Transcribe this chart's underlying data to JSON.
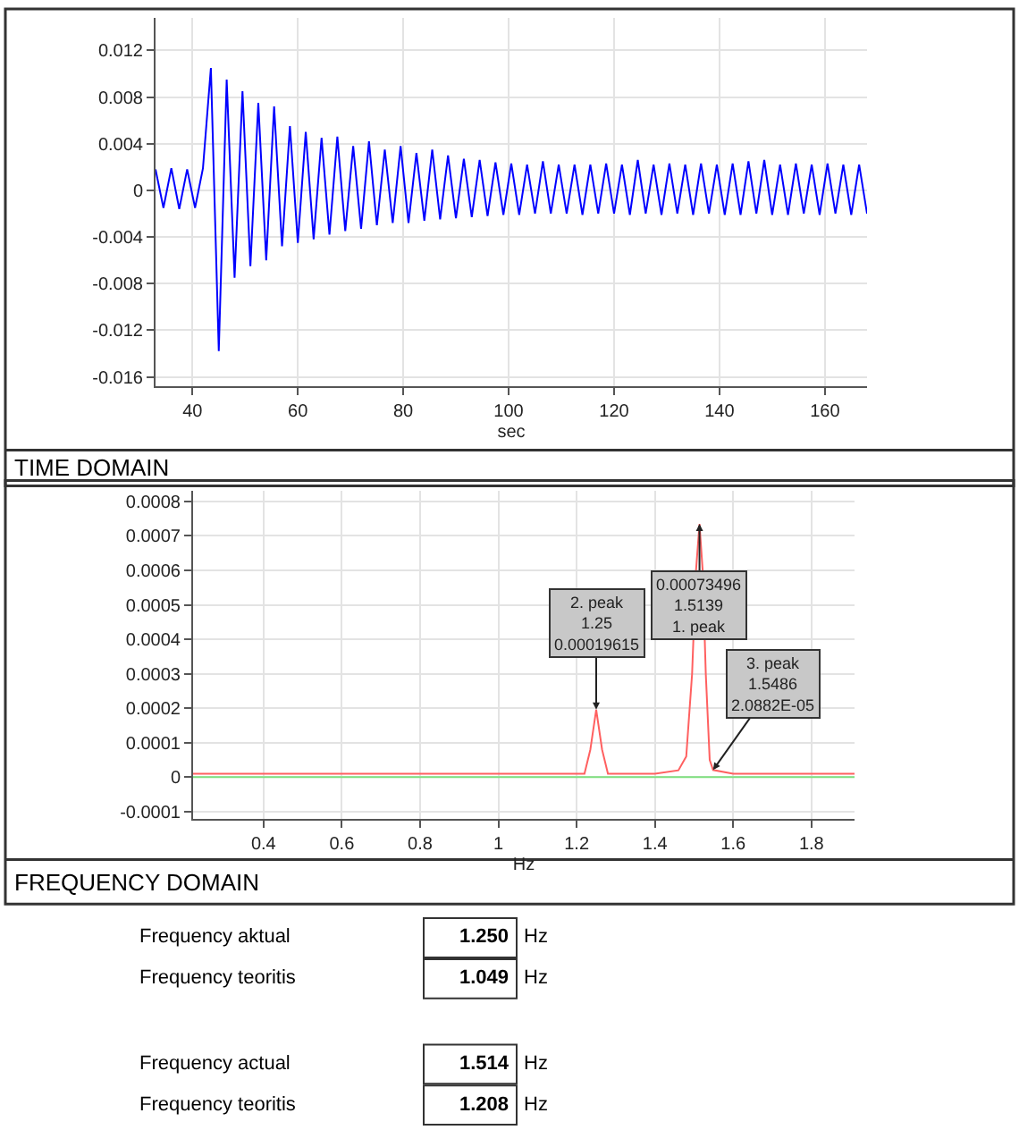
{
  "chart_data": [
    {
      "type": "line",
      "title": "TIME DOMAIN",
      "xlabel": "sec",
      "color": "#0000ff",
      "grid": true,
      "xlim": [
        33,
        168
      ],
      "ylim": [
        -0.0168,
        0.0148
      ],
      "xticks": [
        40,
        60,
        80,
        100,
        120,
        140,
        160
      ],
      "yticks": [
        -0.016,
        -0.012,
        -0.008,
        -0.004,
        0,
        0.004,
        0.008,
        0.012
      ],
      "x": [
        33,
        34.5,
        36,
        37.5,
        39,
        40.5,
        42,
        43.5,
        45,
        46.5,
        48,
        49.5,
        51,
        52.5,
        54,
        55.5,
        57,
        58.5,
        60,
        61.5,
        63,
        64.5,
        66,
        67.5,
        69,
        70.5,
        72,
        73.5,
        75,
        76.5,
        78,
        79.5,
        81,
        82.5,
        84,
        85.5,
        87,
        88.5,
        90,
        91.5,
        93,
        94.5,
        96,
        97.5,
        99,
        100.5,
        102,
        103.5,
        105,
        106.5,
        108,
        109.5,
        111,
        112.5,
        114,
        115.5,
        117,
        118.5,
        120,
        121.5,
        123,
        124.5,
        126,
        127.5,
        129,
        130.5,
        132,
        133.5,
        135,
        136.5,
        138,
        139.5,
        141,
        142.5,
        144,
        145.5,
        147,
        148.5,
        150,
        151.5,
        153,
        154.5,
        156,
        157.5,
        159,
        160.5,
        162,
        163.5,
        165,
        166.5,
        168
      ],
      "values": [
        0.0018,
        -0.0015,
        0.0019,
        -0.0016,
        0.0018,
        -0.0015,
        0.0019,
        0.0105,
        -0.0138,
        0.0095,
        -0.0075,
        0.0085,
        -0.0065,
        0.0075,
        -0.006,
        0.0072,
        -0.0048,
        0.0055,
        -0.0045,
        0.005,
        -0.0042,
        0.0045,
        -0.0038,
        0.0046,
        -0.0035,
        0.0038,
        -0.0033,
        0.0042,
        -0.003,
        0.0035,
        -0.0028,
        0.0038,
        -0.0028,
        0.0032,
        -0.0026,
        0.0035,
        -0.0025,
        0.003,
        -0.0024,
        0.0027,
        -0.0023,
        0.0026,
        -0.0022,
        0.0024,
        -0.0021,
        0.0023,
        -0.0021,
        0.0022,
        -0.002,
        0.0025,
        -0.002,
        0.0022,
        -0.002,
        0.0022,
        -0.0021,
        0.0022,
        -0.002,
        0.0023,
        -0.002,
        0.0022,
        -0.0021,
        0.0026,
        -0.002,
        0.0022,
        -0.0021,
        0.0023,
        -0.002,
        0.0022,
        -0.0021,
        0.0023,
        -0.002,
        0.0022,
        -0.0021,
        0.0023,
        -0.0021,
        0.0025,
        -0.002,
        0.0026,
        -0.0021,
        0.0022,
        -0.0021,
        0.0023,
        -0.002,
        0.0022,
        -0.0021,
        0.0023,
        -0.002,
        0.0022,
        -0.0021,
        0.0022,
        -0.002
      ]
    },
    {
      "type": "line",
      "title": "FREQUENCY DOMAIN",
      "xlabel": "Hz",
      "grid": true,
      "xlim": [
        0.22,
        1.91
      ],
      "ylim": [
        -0.00012,
        0.00083
      ],
      "xticks": [
        0.4,
        0.6,
        0.8,
        1,
        1.2,
        1.4,
        1.6,
        1.8
      ],
      "yticks": [
        -0.0001,
        0,
        0.0001,
        0.0002,
        0.0003,
        0.0004,
        0.0005,
        0.0006,
        0.0007,
        0.0008
      ],
      "series": [
        {
          "color": "#7fe07f",
          "x": [
            0.22,
            1.91
          ],
          "values": [
            0,
            0
          ]
        },
        {
          "color": "#ff6060",
          "x": [
            0.22,
            0.4,
            0.6,
            0.8,
            1.0,
            1.2,
            1.22,
            1.235,
            1.25,
            1.265,
            1.28,
            1.4,
            1.46,
            1.48,
            1.495,
            1.505,
            1.5139,
            1.522,
            1.53,
            1.54,
            1.5486,
            1.6,
            1.7,
            1.8,
            1.91
          ],
          "values": [
            1e-05,
            1e-05,
            1e-05,
            1e-05,
            1e-05,
            1e-05,
            1e-05,
            8e-05,
            0.000196,
            8e-05,
            1e-05,
            1e-05,
            2e-05,
            6e-05,
            0.0003,
            0.0006,
            0.000735,
            0.0006,
            0.0003,
            5e-05,
            2.1e-05,
            1e-05,
            1e-05,
            1e-05,
            1e-05
          ]
        }
      ],
      "annotations": [
        {
          "text": "0.00073496\n1.5139\n1. peak",
          "x": 1.5139,
          "y": 0.00073496
        },
        {
          "text": "2. peak\n1.25\n0.00019615",
          "x": 1.25,
          "y": 0.00019615
        },
        {
          "text": "3. peak\n1.5486\n2.0882E-05",
          "x": 1.5486,
          "y": 2.0882e-05
        }
      ]
    },
    {
      "type": "other",
      "annotations": [
        "Frequency aktual",
        "1.250",
        "Hz",
        "Frequency teoritis",
        "1.049",
        "Hz",
        "Frequency actual",
        "1.514",
        "Hz",
        "Frequency teoritis",
        "1.208",
        "Hz"
      ]
    }
  ]
}
